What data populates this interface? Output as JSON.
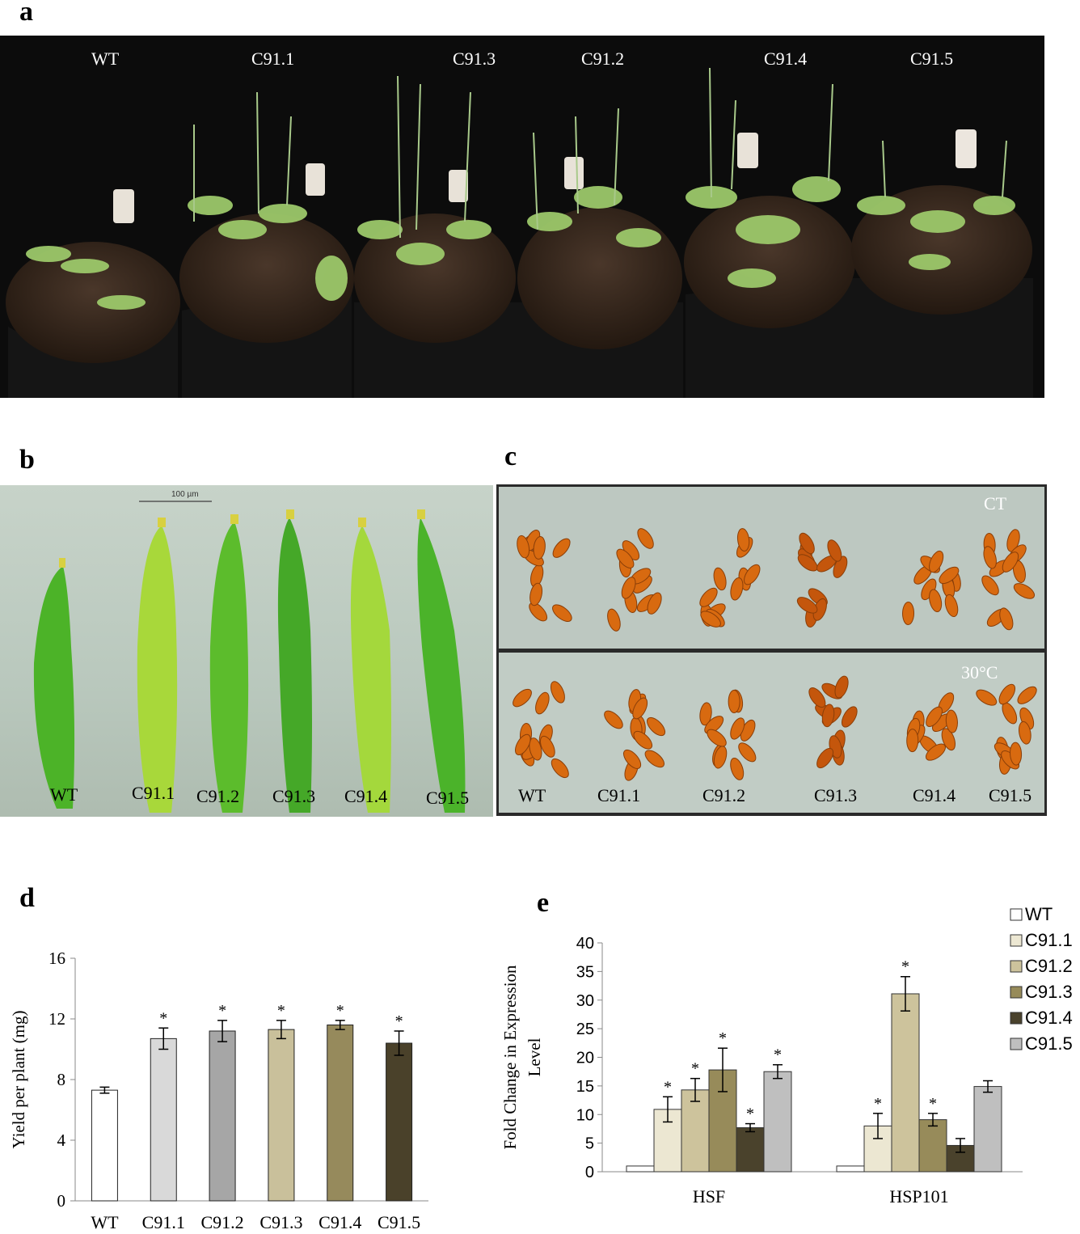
{
  "panels": {
    "a": {
      "letter": "a",
      "labels": [
        "WT",
        "C91.1",
        "C91.3",
        "C91.2",
        "C91.4",
        "C91.5"
      ]
    },
    "b": {
      "letter": "b",
      "scale_bar": "100 µm",
      "labels": [
        "WT",
        "C91.1",
        "C91.2",
        "C91.3",
        "C91.4",
        "C91.5"
      ]
    },
    "c": {
      "letter": "c",
      "top_condition": "CT",
      "bottom_condition": "30°C",
      "labels": [
        "WT",
        "C91.1",
        "C91.2",
        "C91.3",
        "C91.4",
        "C91.5"
      ]
    },
    "d": {
      "letter": "d"
    },
    "e": {
      "letter": "e"
    }
  },
  "colors": {
    "soil": "#2e2118",
    "leaf": "#8fbf5a",
    "silique": "#4fb82a",
    "seed": "#d86a10",
    "plate": "#b8c4bd"
  },
  "chart_data": [
    {
      "type": "bar",
      "panel": "d",
      "categories": [
        "WT",
        "C91.1",
        "C91.2",
        "C91.3",
        "C91.4",
        "C91.5"
      ],
      "values": [
        7.3,
        10.7,
        11.2,
        11.3,
        11.6,
        10.4
      ],
      "errors": [
        0.2,
        0.7,
        0.7,
        0.6,
        0.3,
        0.8
      ],
      "significance": [
        "",
        "*",
        "*",
        "*",
        "*",
        "*"
      ],
      "bar_colors": [
        "#ffffff",
        "#d9d9d9",
        "#a6a6a6",
        "#c9c09b",
        "#968a5c",
        "#4a412a"
      ],
      "ylabel": "Yield per plant (mg)",
      "ylim": [
        0,
        16
      ],
      "yticks": [
        0,
        4,
        8,
        12,
        16
      ],
      "grid": false
    },
    {
      "type": "bar",
      "panel": "e",
      "categories": [
        "HSF",
        "HSP101"
      ],
      "series": [
        {
          "name": "WT",
          "values": [
            1,
            1
          ],
          "errors": [
            0,
            0
          ],
          "significance": [
            "",
            ""
          ],
          "color": "#ffffff"
        },
        {
          "name": "C91.1",
          "values": [
            10.9,
            8.0
          ],
          "errors": [
            2.2,
            2.2
          ],
          "significance": [
            "*",
            "*"
          ],
          "color": "#ece7d2"
        },
        {
          "name": "C91.2",
          "values": [
            14.3,
            31.1
          ],
          "errors": [
            2.0,
            3.0
          ],
          "significance": [
            "*",
            "*"
          ],
          "color": "#cdc39c"
        },
        {
          "name": "C91.3",
          "values": [
            17.8,
            9.1
          ],
          "errors": [
            3.8,
            1.1
          ],
          "significance": [
            "*",
            "*"
          ],
          "color": "#978b5a"
        },
        {
          "name": "C91.4",
          "values": [
            7.7,
            4.6
          ],
          "errors": [
            0.7,
            1.2
          ],
          "significance": [
            "*",
            ""
          ],
          "color": "#4a422c"
        },
        {
          "name": "C91.5",
          "values": [
            17.5,
            14.9
          ],
          "errors": [
            1.2,
            1.0
          ],
          "significance": [
            "*",
            ""
          ],
          "color": "#bfbfbf"
        }
      ],
      "ylabel": "Fold Change in Expression Level",
      "ylim": [
        0,
        40
      ],
      "yticks": [
        0,
        5,
        10,
        15,
        20,
        25,
        30,
        35,
        40
      ],
      "legend": "top-right",
      "grid": false
    }
  ]
}
